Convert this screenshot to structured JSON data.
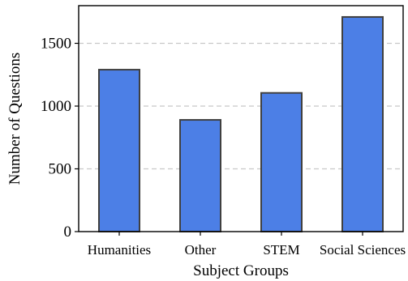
{
  "chart_data": {
    "type": "bar",
    "title": "",
    "xlabel": "Subject Groups",
    "ylabel": "Number of Questions",
    "categories": [
      "Humanities",
      "Other",
      "STEM",
      "Social Sciences"
    ],
    "values": [
      1290,
      890,
      1105,
      1710
    ],
    "ylim": [
      0,
      1800
    ],
    "yticks": [
      "0",
      "500",
      "1000",
      "1500"
    ],
    "grid": "horizontal dashed",
    "legend": "none",
    "colors": {
      "bar_fill": "#4c7fe6",
      "bar_edge": "#404040",
      "grid": "#c8c8c8",
      "axis": "#000000"
    }
  }
}
